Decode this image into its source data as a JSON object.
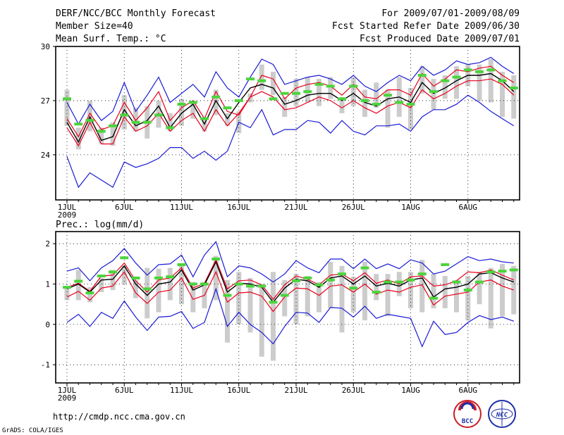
{
  "header": {
    "title": "DERF/NCC/BCC Monthly Forecast",
    "member_size": "Member Size=40",
    "panel1_variable": "Mean Surf. Temp.: °C",
    "period": "For 2009/07/01-2009/08/09",
    "started": "Fcst Started Refer Date 2009/06/30",
    "produced": "Fcst Produced Date 2009/07/01"
  },
  "footer": {
    "url": "http://cmdp.ncc.cma.gov.cn",
    "credit": "GrADS: COLA/IGES",
    "logo_bcc": "BCC",
    "logo_ncc": "NCC"
  },
  "colors": {
    "spread_bar": "#cccccc",
    "ensemble_mean": "#000000",
    "inner_bounds": "#e8001c",
    "outer_bounds": "#1a1ad6",
    "marker": "#4cd43c"
  },
  "chart_data": [
    {
      "type": "line",
      "title": "Mean Surf. Temp.: °C",
      "x_tick_labels": [
        "1JUL",
        "6JUL",
        "11JUL",
        "16JUL",
        "21JUL",
        "26JUL",
        "1AUG",
        "6AUG"
      ],
      "x_year_label": "2009",
      "y_ticks": [
        24,
        27,
        30
      ],
      "ylim": [
        21.5,
        30
      ],
      "days": 40,
      "series": [
        {
          "name": "max",
          "values": [
            26.9,
            25.7,
            26.8,
            25.9,
            26.4,
            28.0,
            26.4,
            27.3,
            28.3,
            26.9,
            27.4,
            27.9,
            27.2,
            28.6,
            27.7,
            27.2,
            28.3,
            29.3,
            29.0,
            27.9,
            28.1,
            28.3,
            28.4,
            28.2,
            27.9,
            28.4,
            27.8,
            27.5,
            28.0,
            28.4,
            28.1,
            28.9,
            28.4,
            28.7,
            29.2,
            29.0,
            29.1,
            29.4,
            28.9,
            28.5
          ]
        },
        {
          "name": "upper",
          "values": [
            26.0,
            25.0,
            26.3,
            25.4,
            25.6,
            26.9,
            25.9,
            26.6,
            27.5,
            25.9,
            26.6,
            27.0,
            26.0,
            27.5,
            26.4,
            26.2,
            27.2,
            28.4,
            28.2,
            27.1,
            27.7,
            27.9,
            28.0,
            27.8,
            27.3,
            27.9,
            27.2,
            27.1,
            27.6,
            27.6,
            27.3,
            28.5,
            27.8,
            28.2,
            28.7,
            28.6,
            28.8,
            28.9,
            28.4,
            28.0
          ]
        },
        {
          "name": "mean",
          "values": [
            25.8,
            24.7,
            26.1,
            24.8,
            25.0,
            26.5,
            25.6,
            25.9,
            26.7,
            25.5,
            26.3,
            26.8,
            25.7,
            27.0,
            26.0,
            26.9,
            27.7,
            27.9,
            27.7,
            26.8,
            27.0,
            27.3,
            27.4,
            27.4,
            27.0,
            27.4,
            26.9,
            26.7,
            27.1,
            27.2,
            26.9,
            28.0,
            27.4,
            27.7,
            28.1,
            28.4,
            28.4,
            28.5,
            28.1,
            27.5
          ]
        },
        {
          "name": "lower",
          "values": [
            25.5,
            24.5,
            25.8,
            24.6,
            24.6,
            26.1,
            25.3,
            25.6,
            26.3,
            25.3,
            25.9,
            26.3,
            25.3,
            26.5,
            25.6,
            26.3,
            27.2,
            27.5,
            27.2,
            26.5,
            26.6,
            26.9,
            27.2,
            27.0,
            26.6,
            27.0,
            26.6,
            26.3,
            26.7,
            26.9,
            26.6,
            27.6,
            27.1,
            27.4,
            27.8,
            28.1,
            28.1,
            28.2,
            27.9,
            27.3
          ]
        },
        {
          "name": "min",
          "values": [
            23.9,
            22.2,
            23.0,
            22.6,
            22.2,
            23.6,
            23.3,
            23.5,
            23.8,
            24.4,
            24.4,
            23.8,
            24.2,
            23.7,
            24.2,
            25.8,
            25.5,
            26.5,
            25.1,
            25.4,
            25.4,
            25.9,
            25.8,
            25.2,
            25.9,
            25.3,
            25.1,
            25.6,
            25.6,
            25.7,
            25.3,
            26.1,
            26.5,
            26.5,
            26.8,
            27.3,
            26.9,
            26.4,
            26.0,
            25.6
          ]
        },
        {
          "name": "bar_top",
          "values": [
            27.6,
            25.5,
            27.0,
            25.5,
            25.8,
            27.3,
            26.6,
            26.7,
            27.0,
            26.3,
            27.1,
            27.0,
            26.0,
            27.6,
            26.3,
            26.4,
            27.4,
            29.0,
            28.6,
            27.2,
            28.2,
            28.3,
            28.2,
            28.3,
            27.2,
            28.3,
            27.6,
            28.0,
            27.6,
            28.3,
            27.7,
            28.9,
            28.2,
            28.4,
            28.9,
            29.0,
            29.0,
            29.3,
            28.6,
            28.4
          ]
        },
        {
          "name": "bar_bottom",
          "values": [
            25.6,
            24.3,
            25.3,
            24.6,
            24.5,
            25.4,
            25.3,
            24.9,
            25.5,
            25.3,
            25.6,
            26.0,
            25.3,
            26.2,
            25.6,
            25.2,
            26.9,
            27.6,
            27.3,
            26.1,
            26.7,
            26.9,
            26.7,
            27.1,
            26.3,
            26.7,
            26.1,
            26.6,
            25.5,
            26.1,
            25.4,
            27.4,
            26.5,
            27.1,
            27.1,
            27.8,
            27.0,
            26.9,
            26.1,
            26.0
          ]
        },
        {
          "name": "observed",
          "values": [
            27.1,
            25.7,
            25.9,
            25.3,
            25.6,
            26.2,
            25.8,
            25.8,
            26.2,
            25.5,
            26.8,
            26.9,
            26.0,
            27.2,
            26.6,
            27.0,
            28.2,
            28.1,
            27.1,
            27.4,
            27.4,
            27.5,
            27.9,
            27.8,
            27.1,
            27.8,
            27.0,
            26.8,
            27.3,
            26.9,
            26.8,
            28.4,
            27.5,
            28.1,
            28.3,
            28.7,
            28.6,
            28.7,
            28.1,
            27.7
          ]
        }
      ]
    },
    {
      "type": "line",
      "title": "Prec.: log(mm/d)",
      "x_tick_labels": [
        "1JUL",
        "6JUL",
        "11JUL",
        "16JUL",
        "21JUL",
        "26JUL",
        "1AUG",
        "6AUG"
      ],
      "x_year_label": "2009",
      "y_ticks": [
        -1,
        0,
        1,
        2
      ],
      "ylim": [
        -1.45,
        2.3
      ],
      "days": 40,
      "series": [
        {
          "name": "max",
          "values": [
            1.32,
            1.4,
            1.08,
            1.4,
            1.58,
            1.88,
            1.52,
            1.22,
            1.48,
            1.5,
            1.72,
            1.18,
            1.72,
            2.05,
            1.18,
            1.45,
            1.4,
            1.25,
            1.05,
            1.25,
            1.58,
            1.4,
            1.28,
            1.62,
            1.62,
            1.38,
            1.62,
            1.38,
            1.5,
            1.38,
            1.6,
            1.52,
            1.25,
            1.32,
            1.5,
            1.68,
            1.58,
            1.62,
            1.55,
            1.52
          ]
        },
        {
          "name": "upper",
          "values": [
            0.92,
            1.02,
            0.82,
            1.2,
            1.22,
            1.52,
            1.08,
            0.8,
            1.1,
            1.15,
            1.4,
            0.9,
            1.02,
            1.6,
            0.88,
            1.08,
            1.1,
            0.98,
            0.62,
            0.98,
            1.2,
            1.12,
            0.98,
            1.22,
            1.25,
            1.08,
            1.28,
            1.02,
            1.1,
            1.0,
            1.18,
            1.2,
            0.95,
            0.98,
            1.08,
            1.3,
            1.28,
            1.35,
            1.22,
            1.1
          ]
        },
        {
          "name": "mean",
          "values": [
            0.88,
            1.0,
            0.8,
            1.1,
            1.12,
            1.45,
            1.0,
            0.72,
            1.0,
            1.05,
            1.35,
            0.85,
            0.98,
            1.55,
            0.8,
            1.02,
            1.0,
            0.92,
            0.55,
            0.9,
            1.12,
            1.08,
            0.92,
            1.15,
            1.2,
            1.0,
            1.2,
            0.95,
            1.02,
            0.95,
            1.1,
            1.15,
            0.68,
            0.88,
            0.92,
            1.0,
            1.25,
            1.28,
            1.15,
            1.05
          ]
        },
        {
          "name": "lower",
          "values": [
            0.68,
            0.82,
            0.6,
            0.9,
            0.95,
            1.3,
            0.78,
            0.52,
            0.8,
            0.85,
            1.15,
            0.62,
            0.72,
            1.3,
            0.55,
            0.78,
            0.8,
            0.7,
            0.32,
            0.68,
            0.9,
            0.88,
            0.72,
            0.95,
            0.98,
            0.8,
            1.0,
            0.75,
            0.85,
            0.8,
            0.92,
            0.98,
            0.48,
            0.7,
            0.75,
            0.8,
            1.05,
            1.1,
            0.95,
            0.85
          ]
        },
        {
          "name": "min",
          "values": [
            0.05,
            0.25,
            -0.05,
            0.3,
            0.15,
            0.58,
            0.18,
            -0.15,
            0.18,
            0.2,
            0.32,
            -0.1,
            0.05,
            0.88,
            -0.05,
            0.3,
            0.0,
            -0.2,
            -0.48,
            -0.05,
            0.3,
            0.28,
            0.05,
            0.42,
            0.4,
            0.18,
            0.45,
            0.15,
            0.25,
            0.2,
            0.15,
            -0.55,
            0.08,
            -0.25,
            -0.2,
            0.05,
            0.22,
            0.12,
            0.18,
            0.08
          ]
        },
        {
          "name": "bar_top",
          "values": [
            0.9,
            1.35,
            0.92,
            1.15,
            1.35,
            1.45,
            1.1,
            1.4,
            1.38,
            1.4,
            1.5,
            1.05,
            1.05,
            1.7,
            1.1,
            1.3,
            1.15,
            1.0,
            1.3,
            1.1,
            1.25,
            1.2,
            1.05,
            1.55,
            1.45,
            1.18,
            1.55,
            1.25,
            1.25,
            1.3,
            1.3,
            1.6,
            1.25,
            1.2,
            1.1,
            1.2,
            1.3,
            1.4,
            1.5,
            1.45
          ]
        },
        {
          "name": "bar_bottom",
          "values": [
            0.6,
            0.6,
            0.55,
            0.8,
            0.85,
            1.0,
            0.65,
            0.15,
            0.3,
            0.6,
            0.5,
            0.3,
            0.4,
            0.6,
            -0.45,
            0.0,
            -0.2,
            -0.8,
            -0.9,
            0.2,
            0.0,
            0.2,
            0.3,
            0.4,
            -0.2,
            0.3,
            0.1,
            0.6,
            0.2,
            0.7,
            0.4,
            0.3,
            0.4,
            0.4,
            0.3,
            0.1,
            0.5,
            -0.1,
            0.2,
            0.25
          ]
        },
        {
          "name": "observed",
          "values": [
            0.92,
            1.07,
            0.78,
            1.2,
            1.3,
            1.65,
            1.15,
            0.88,
            1.15,
            1.18,
            1.48,
            1.0,
            1.0,
            1.62,
            0.72,
            1.0,
            0.95,
            0.95,
            0.55,
            0.72,
            1.08,
            1.15,
            0.98,
            1.1,
            1.25,
            0.9,
            1.4,
            0.8,
            1.05,
            1.05,
            1.1,
            1.25,
            0.65,
            1.48,
            1.05,
            0.85,
            1.05,
            1.3,
            1.32,
            1.35
          ]
        }
      ]
    }
  ]
}
